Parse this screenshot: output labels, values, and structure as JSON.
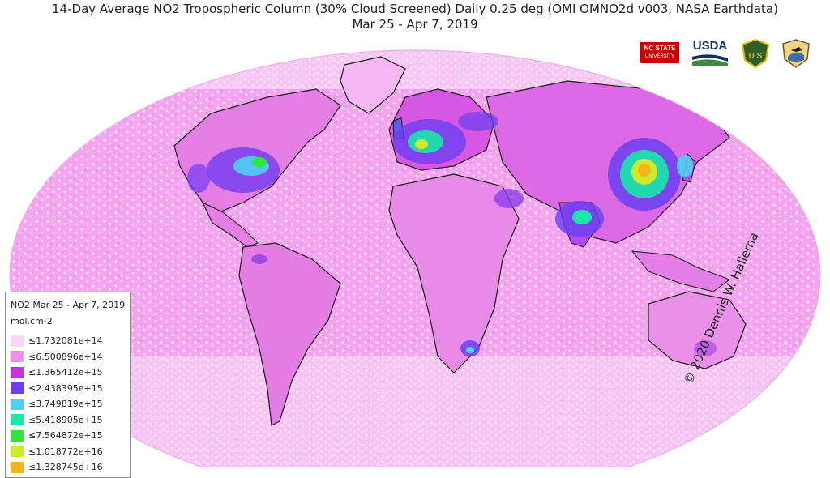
{
  "header": {
    "title": "14-Day Average NO2 Tropospheric Column (30% Cloud Screened) Daily 0.25 deg (OMI OMNO2d v003, NASA Earthdata)",
    "subtitle": "Mar 25 - Apr 7, 2019"
  },
  "logos": {
    "ncstate": {
      "name": "NC STATE",
      "sub": "UNIVERSITY"
    },
    "usda": "USDA",
    "forest_service": "U S",
    "fws": "fish-wildlife-service-logo"
  },
  "copyright": "© 2020 Dennis W. Hallema",
  "legend": {
    "title": "NO2 Mar 25 - Apr 7, 2019",
    "unit": "mol.cm-2",
    "entries": [
      {
        "label": "≤1.732081e+14",
        "color": "#fbd7f8"
      },
      {
        "label": "≤6.500896e+14",
        "color": "#f58ef0"
      },
      {
        "label": "≤1.365412e+15",
        "color": "#cc2ee0"
      },
      {
        "label": "≤2.438395e+15",
        "color": "#6b3ff0"
      },
      {
        "label": "≤3.749819e+15",
        "color": "#4fd0f5"
      },
      {
        "label": "≤5.418905e+15",
        "color": "#19e8a8"
      },
      {
        "label": "≤7.564872e+15",
        "color": "#2ee637"
      },
      {
        "label": "≤1.018772e+16",
        "color": "#cdeb2a"
      },
      {
        "label": "≤1.328745e+16",
        "color": "#f5b518"
      }
    ]
  },
  "colors": {
    "ocean_base": "#f3a2ef",
    "land_low": "#e98ee8",
    "border": "#1a1a1a",
    "background": "#ffffff"
  }
}
